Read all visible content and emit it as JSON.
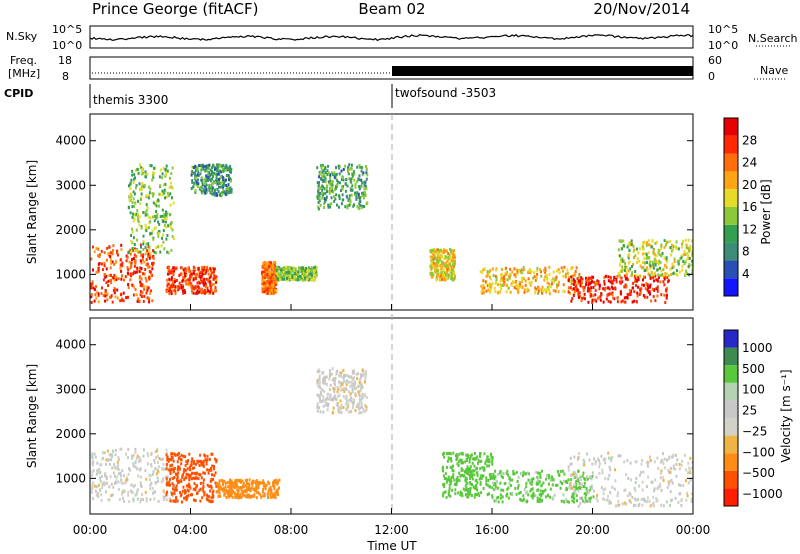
{
  "header": {
    "station": "Prince George (fitACF)",
    "beam": "Beam 02",
    "date": "20/Nov/2014"
  },
  "top_panels": {
    "nsky_label": "N.Sky",
    "nsky_ticks": [
      "10^5",
      "10^0"
    ],
    "nsearch_label": "N.Search",
    "nsearch_ticks": [
      "10^5",
      "10^0"
    ],
    "freq_label_1": "Freq.",
    "freq_label_2": "[MHz]",
    "freq_ticks": [
      "18",
      "8"
    ],
    "nave_label": "Nave",
    "nave_ticks": [
      "60",
      "0"
    ],
    "cpid_label": "CPID",
    "cpid_segments": [
      {
        "label": "themis 3300",
        "start_hr": 0
      },
      {
        "label": "twofsound -3503",
        "start_hr": 12.0
      }
    ]
  },
  "colors": {
    "power_scale": [
      "#1414ff",
      "#2850b4",
      "#3c8c78",
      "#32a050",
      "#8cc83c",
      "#e6dc28",
      "#ffa514",
      "#ff6e0a",
      "#ff2800",
      "#e60000"
    ],
    "velocity_scale": [
      "#ff1e00",
      "#ff5000",
      "#ff8c14",
      "#f0b446",
      "#d2d2c8",
      "#c8c8c8",
      "#b4d2b4",
      "#5ac83c",
      "#3c8c50",
      "#2828c8"
    ]
  },
  "chart_data": [
    {
      "type": "heatmap",
      "name": "power",
      "ylabel": "Slant Range [km]",
      "yticks": [
        "1000",
        "2000",
        "3000",
        "4000"
      ],
      "ylim": [
        200,
        4600
      ],
      "xlim": [
        0,
        24
      ],
      "colorbar_label": "Power [dB]",
      "colorbar_ticks": [
        "4",
        "8",
        "12",
        "16",
        "20",
        "24",
        "28"
      ],
      "colorbar_range": [
        0,
        32
      ],
      "regions": [
        {
          "t": [
            0.0,
            2.5
          ],
          "r": [
            400,
            1700
          ],
          "v": 26
        },
        {
          "t": [
            1.5,
            3.3
          ],
          "r": [
            1500,
            3500
          ],
          "v": 14
        },
        {
          "t": [
            3.0,
            5.0
          ],
          "r": [
            600,
            1200
          ],
          "v": 27
        },
        {
          "t": [
            4.0,
            5.6
          ],
          "r": [
            2800,
            3500
          ],
          "v": 10
        },
        {
          "t": [
            6.8,
            7.4
          ],
          "r": [
            600,
            1300
          ],
          "v": 24
        },
        {
          "t": [
            7.4,
            9.0
          ],
          "r": [
            900,
            1200
          ],
          "v": 14
        },
        {
          "t": [
            9.0,
            11.0
          ],
          "r": [
            2500,
            3500
          ],
          "v": 11
        },
        {
          "t": [
            13.5,
            14.5
          ],
          "r": [
            900,
            1600
          ],
          "v": 18
        },
        {
          "t": [
            15.5,
            19.5
          ],
          "r": [
            600,
            1200
          ],
          "v": 20
        },
        {
          "t": [
            19.0,
            23.0
          ],
          "r": [
            400,
            1000
          ],
          "v": 28
        },
        {
          "t": [
            21.0,
            24.0
          ],
          "r": [
            1000,
            1800
          ],
          "v": 16
        }
      ]
    },
    {
      "type": "heatmap",
      "name": "velocity",
      "ylabel": "Slant Range [km]",
      "yticks": [
        "1000",
        "2000",
        "3000",
        "4000"
      ],
      "ylim": [
        200,
        4600
      ],
      "xlabel": "Time UT",
      "xticks": [
        "00:00",
        "04:00",
        "08:00",
        "12:00",
        "16:00",
        "20:00",
        "00:00"
      ],
      "xlim": [
        0,
        24
      ],
      "colorbar_label": "Velocity [m s⁻¹]",
      "colorbar_ticks": [
        "1000",
        "500",
        "100",
        "25",
        "−25",
        "−100",
        "−500",
        "−1000"
      ],
      "regions": [
        {
          "t": [
            0.0,
            3.3
          ],
          "r": [
            500,
            1700
          ],
          "v": 0
        },
        {
          "t": [
            3.0,
            5.0
          ],
          "r": [
            500,
            1600
          ],
          "v": -600
        },
        {
          "t": [
            5.0,
            7.5
          ],
          "r": [
            600,
            1000
          ],
          "v": -300
        },
        {
          "t": [
            9.0,
            11.0
          ],
          "r": [
            2500,
            3500
          ],
          "v": 0
        },
        {
          "t": [
            14.0,
            16.0
          ],
          "r": [
            600,
            1600
          ],
          "v": 150
        },
        {
          "t": [
            16.0,
            20.0
          ],
          "r": [
            500,
            1200
          ],
          "v": 120
        },
        {
          "t": [
            19.0,
            24.0
          ],
          "r": [
            400,
            1600
          ],
          "v": 0
        }
      ]
    }
  ]
}
